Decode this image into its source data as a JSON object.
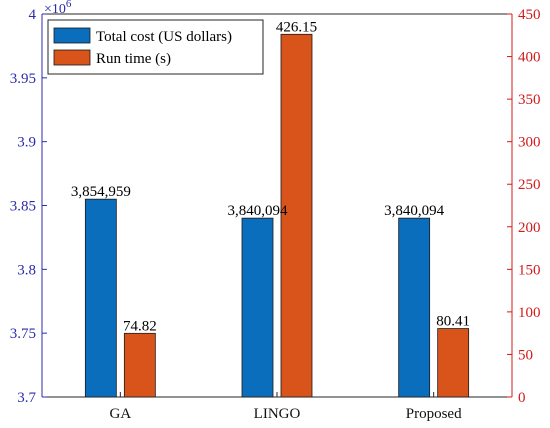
{
  "chart_data": {
    "type": "bar",
    "categories": [
      "GA",
      "LINGO",
      "Proposed"
    ],
    "series": [
      {
        "name": "Total cost (US dollars)",
        "axis": "left",
        "values": [
          3854959,
          3840094,
          3840094
        ],
        "labels": [
          "3,854,959",
          "3,840,094",
          "3,840,094"
        ],
        "color": "#0a6ebd"
      },
      {
        "name": "Run time (s)",
        "axis": "right",
        "values": [
          74.82,
          426.15,
          80.41
        ],
        "labels": [
          "74.82",
          "426.15",
          "80.41"
        ],
        "color": "#d9541a"
      }
    ],
    "left_axis": {
      "ylim": [
        3700000,
        4000000
      ],
      "ticks": [
        3700000,
        3750000,
        3800000,
        3850000,
        3900000,
        3950000,
        4000000
      ],
      "tick_labels": [
        "3.7",
        "3.75",
        "3.8",
        "3.85",
        "3.9",
        "3.95",
        "4"
      ],
      "multiplier_base": "×10",
      "multiplier_exp": "6",
      "color": "#2b2bb0"
    },
    "right_axis": {
      "ylim": [
        0,
        450
      ],
      "ticks": [
        0,
        50,
        100,
        150,
        200,
        250,
        300,
        350,
        400,
        450
      ],
      "tick_labels": [
        "0",
        "50",
        "100",
        "150",
        "200",
        "250",
        "300",
        "350",
        "400",
        "450"
      ],
      "color": "#d11a1a"
    },
    "legend": {
      "placement": "top-left"
    },
    "grid": false
  }
}
